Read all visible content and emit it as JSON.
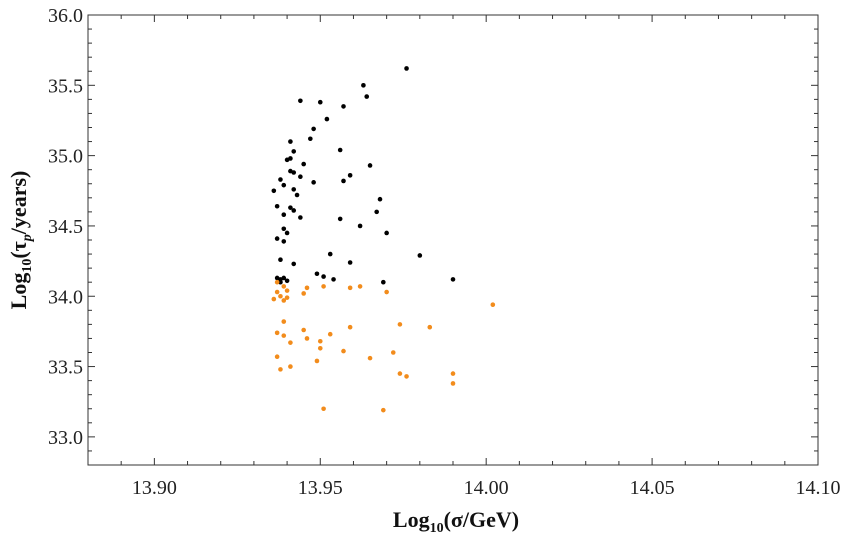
{
  "chart_data": {
    "type": "scatter",
    "title": "",
    "xlabel": {
      "prefix": "Log",
      "sub": "10",
      "body": "(σ/GeV)"
    },
    "ylabel": {
      "prefix": "Log",
      "sub": "10",
      "body_pre": "(τ",
      "body_sub": "p",
      "body_post": "/years)"
    },
    "xlim": [
      13.88,
      14.1
    ],
    "ylim": [
      32.8,
      36.0
    ],
    "xticks": [
      13.9,
      13.95,
      14.0,
      14.05,
      14.1
    ],
    "xtick_labels": [
      "13.90",
      "13.95",
      "14.00",
      "14.05",
      "14.10"
    ],
    "yticks": [
      33.0,
      33.5,
      34.0,
      34.5,
      35.0,
      35.5,
      36.0
    ],
    "ytick_labels": [
      "33.0",
      "33.5",
      "34.0",
      "34.5",
      "35.0",
      "35.5",
      "36.0"
    ],
    "grid": false,
    "colors": {
      "black": "#000000",
      "orange": "#f28c1c",
      "frame": "#333333"
    },
    "series": [
      {
        "color": "black",
        "points": [
          [
            13.976,
            35.62
          ],
          [
            13.963,
            35.5
          ],
          [
            13.964,
            35.42
          ],
          [
            13.944,
            35.39
          ],
          [
            13.95,
            35.38
          ],
          [
            13.957,
            35.35
          ],
          [
            13.952,
            35.26
          ],
          [
            13.948,
            35.19
          ],
          [
            13.947,
            35.12
          ],
          [
            13.941,
            35.1
          ],
          [
            13.956,
            35.04
          ],
          [
            13.942,
            35.03
          ],
          [
            13.941,
            34.98
          ],
          [
            13.94,
            34.97
          ],
          [
            13.945,
            34.94
          ],
          [
            13.965,
            34.93
          ],
          [
            13.941,
            34.89
          ],
          [
            13.942,
            34.88
          ],
          [
            13.959,
            34.86
          ],
          [
            13.944,
            34.85
          ],
          [
            13.938,
            34.83
          ],
          [
            13.957,
            34.82
          ],
          [
            13.948,
            34.81
          ],
          [
            13.939,
            34.79
          ],
          [
            13.942,
            34.76
          ],
          [
            13.936,
            34.75
          ],
          [
            13.943,
            34.72
          ],
          [
            13.968,
            34.69
          ],
          [
            13.937,
            34.64
          ],
          [
            13.941,
            34.63
          ],
          [
            13.942,
            34.61
          ],
          [
            13.967,
            34.6
          ],
          [
            13.939,
            34.58
          ],
          [
            13.944,
            34.56
          ],
          [
            13.956,
            34.55
          ],
          [
            13.962,
            34.5
          ],
          [
            13.939,
            34.48
          ],
          [
            13.94,
            34.45
          ],
          [
            13.97,
            34.45
          ],
          [
            13.937,
            34.41
          ],
          [
            13.939,
            34.39
          ],
          [
            13.953,
            34.3
          ],
          [
            13.98,
            34.29
          ],
          [
            13.938,
            34.26
          ],
          [
            13.959,
            34.24
          ],
          [
            13.942,
            34.23
          ],
          [
            13.949,
            34.16
          ],
          [
            13.951,
            34.14
          ],
          [
            13.937,
            34.13
          ],
          [
            13.939,
            34.13
          ],
          [
            13.938,
            34.12
          ],
          [
            13.954,
            34.12
          ],
          [
            13.99,
            34.12
          ],
          [
            13.94,
            34.11
          ],
          [
            13.969,
            34.1
          ],
          [
            13.938,
            34.1
          ]
        ]
      },
      {
        "color": "orange",
        "points": [
          [
            13.937,
            34.1
          ],
          [
            13.939,
            34.07
          ],
          [
            13.951,
            34.07
          ],
          [
            13.962,
            34.07
          ],
          [
            13.946,
            34.06
          ],
          [
            13.959,
            34.06
          ],
          [
            13.94,
            34.04
          ],
          [
            13.937,
            34.03
          ],
          [
            13.945,
            34.02
          ],
          [
            13.97,
            34.03
          ],
          [
            13.938,
            34.0
          ],
          [
            13.94,
            33.99
          ],
          [
            13.936,
            33.98
          ],
          [
            13.939,
            33.97
          ],
          [
            14.002,
            33.94
          ],
          [
            13.939,
            33.82
          ],
          [
            13.974,
            33.8
          ],
          [
            13.959,
            33.78
          ],
          [
            13.983,
            33.78
          ],
          [
            13.945,
            33.76
          ],
          [
            13.937,
            33.74
          ],
          [
            13.953,
            33.73
          ],
          [
            13.939,
            33.72
          ],
          [
            13.946,
            33.7
          ],
          [
            13.95,
            33.68
          ],
          [
            13.941,
            33.67
          ],
          [
            13.95,
            33.63
          ],
          [
            13.957,
            33.61
          ],
          [
            13.972,
            33.6
          ],
          [
            13.937,
            33.57
          ],
          [
            13.965,
            33.56
          ],
          [
            13.949,
            33.54
          ],
          [
            13.941,
            33.5
          ],
          [
            13.938,
            33.48
          ],
          [
            13.974,
            33.45
          ],
          [
            13.99,
            33.45
          ],
          [
            13.976,
            33.43
          ],
          [
            13.99,
            33.38
          ],
          [
            13.951,
            33.2
          ],
          [
            13.969,
            33.19
          ]
        ]
      }
    ]
  }
}
